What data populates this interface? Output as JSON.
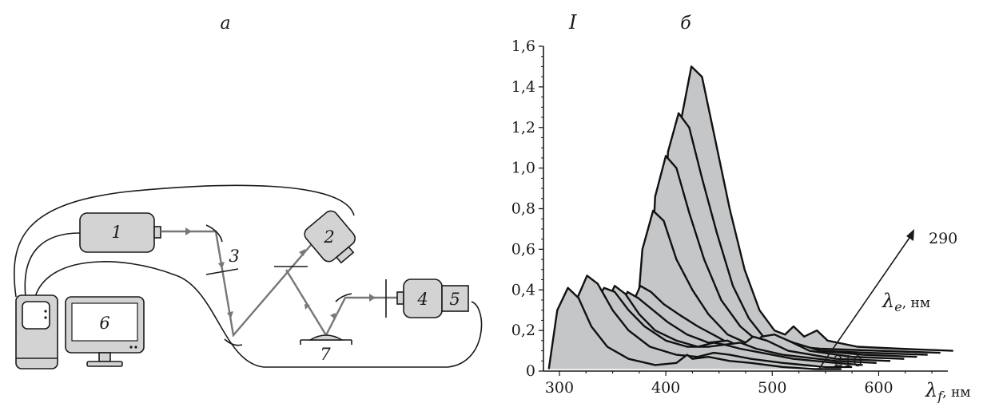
{
  "panel_a": {
    "label": "a",
    "devices": [
      "1",
      "2",
      "3",
      "4",
      "5",
      "6",
      "7"
    ]
  },
  "panel_b": {
    "label": "б"
  },
  "chart_data": {
    "type": "area",
    "ylabel": "I",
    "xlabel": "λ",
    "xlabel_sub": "f",
    "xlabel_unit": ", нм",
    "depth_label": "λ",
    "depth_label_sub": "e",
    "depth_label_unit": ", нм",
    "depth_start_label": "210",
    "depth_end_label": "290",
    "xlim": [
      285,
      665
    ],
    "ylim": [
      0,
      1.6
    ],
    "x_ticks": [
      300,
      400,
      500,
      600
    ],
    "x_tick_labels": [
      "300",
      "400",
      "500",
      "600"
    ],
    "y_ticks": [
      0,
      0.2,
      0.4,
      0.6,
      0.8,
      1.0,
      1.2,
      1.4,
      1.6
    ],
    "y_tick_labels": [
      "0",
      "0,2",
      "0,4",
      "0,6",
      "0,8",
      "1,0",
      "1,2",
      "1,4",
      "1,6"
    ],
    "series": [
      {
        "points": [
          [
            290,
            0.01
          ],
          [
            298,
            0.3
          ],
          [
            308,
            0.41
          ],
          [
            318,
            0.36
          ],
          [
            330,
            0.22
          ],
          [
            345,
            0.12
          ],
          [
            365,
            0.06
          ],
          [
            390,
            0.03
          ],
          [
            410,
            0.04
          ],
          [
            420,
            0.08
          ],
          [
            425,
            0.06
          ],
          [
            440,
            0.07
          ],
          [
            460,
            0.05
          ],
          [
            480,
            0.04
          ],
          [
            510,
            0.02
          ],
          [
            540,
            0.01
          ],
          [
            565,
            0.01
          ]
        ]
      },
      {
        "points": [
          [
            310,
            0.02
          ],
          [
            316,
            0.35
          ],
          [
            326,
            0.47
          ],
          [
            336,
            0.43
          ],
          [
            350,
            0.3
          ],
          [
            365,
            0.2
          ],
          [
            385,
            0.12
          ],
          [
            410,
            0.08
          ],
          [
            430,
            0.07
          ],
          [
            445,
            0.09
          ],
          [
            460,
            0.08
          ],
          [
            480,
            0.06
          ],
          [
            510,
            0.04
          ],
          [
            550,
            0.02
          ],
          [
            575,
            0.02
          ]
        ]
      },
      {
        "points": [
          [
            322,
            0.03
          ],
          [
            330,
            0.3
          ],
          [
            342,
            0.41
          ],
          [
            352,
            0.39
          ],
          [
            365,
            0.3
          ],
          [
            380,
            0.22
          ],
          [
            400,
            0.15
          ],
          [
            420,
            0.12
          ],
          [
            440,
            0.12
          ],
          [
            455,
            0.13
          ],
          [
            470,
            0.11
          ],
          [
            490,
            0.09
          ],
          [
            520,
            0.06
          ],
          [
            560,
            0.04
          ],
          [
            585,
            0.03
          ]
        ]
      },
      {
        "points": [
          [
            334,
            0.04
          ],
          [
            342,
            0.31
          ],
          [
            352,
            0.42
          ],
          [
            362,
            0.38
          ],
          [
            375,
            0.28
          ],
          [
            390,
            0.2
          ],
          [
            410,
            0.15
          ],
          [
            430,
            0.12
          ],
          [
            445,
            0.14
          ],
          [
            455,
            0.13
          ],
          [
            470,
            0.14
          ],
          [
            485,
            0.11
          ],
          [
            510,
            0.08
          ],
          [
            560,
            0.05
          ],
          [
            598,
            0.04
          ]
        ]
      },
      {
        "points": [
          [
            346,
            0.05
          ],
          [
            354,
            0.28
          ],
          [
            364,
            0.39
          ],
          [
            374,
            0.36
          ],
          [
            388,
            0.3
          ],
          [
            402,
            0.24
          ],
          [
            420,
            0.18
          ],
          [
            440,
            0.14
          ],
          [
            458,
            0.15
          ],
          [
            470,
            0.12
          ],
          [
            482,
            0.17
          ],
          [
            495,
            0.15
          ],
          [
            515,
            0.1
          ],
          [
            560,
            0.06
          ],
          [
            611,
            0.05
          ]
        ]
      },
      {
        "points": [
          [
            358,
            0.06
          ],
          [
            366,
            0.3
          ],
          [
            376,
            0.42
          ],
          [
            386,
            0.39
          ],
          [
            398,
            0.33
          ],
          [
            412,
            0.28
          ],
          [
            430,
            0.22
          ],
          [
            448,
            0.17
          ],
          [
            465,
            0.12
          ],
          [
            478,
            0.1
          ],
          [
            490,
            0.17
          ],
          [
            502,
            0.18
          ],
          [
            515,
            0.15
          ],
          [
            535,
            0.1
          ],
          [
            575,
            0.07
          ],
          [
            624,
            0.06
          ]
        ]
      },
      {
        "points": [
          [
            370,
            0.07
          ],
          [
            378,
            0.6
          ],
          [
            388,
            0.79
          ],
          [
            398,
            0.74
          ],
          [
            410,
            0.55
          ],
          [
            425,
            0.4
          ],
          [
            440,
            0.28
          ],
          [
            458,
            0.18
          ],
          [
            475,
            0.14
          ],
          [
            490,
            0.16
          ],
          [
            505,
            0.17
          ],
          [
            520,
            0.14
          ],
          [
            545,
            0.1
          ],
          [
            585,
            0.08
          ],
          [
            636,
            0.07
          ]
        ]
      },
      {
        "points": [
          [
            382,
            0.08
          ],
          [
            390,
            0.86
          ],
          [
            400,
            1.06
          ],
          [
            410,
            1.0
          ],
          [
            422,
            0.78
          ],
          [
            436,
            0.55
          ],
          [
            452,
            0.35
          ],
          [
            470,
            0.22
          ],
          [
            488,
            0.14
          ],
          [
            500,
            0.11
          ],
          [
            512,
            0.13
          ],
          [
            525,
            0.12
          ],
          [
            545,
            0.1
          ],
          [
            590,
            0.09
          ],
          [
            646,
            0.08
          ]
        ]
      },
      {
        "points": [
          [
            394,
            0.09
          ],
          [
            402,
            1.08
          ],
          [
            412,
            1.27
          ],
          [
            422,
            1.2
          ],
          [
            434,
            0.95
          ],
          [
            448,
            0.68
          ],
          [
            463,
            0.42
          ],
          [
            478,
            0.26
          ],
          [
            493,
            0.16
          ],
          [
            505,
            0.12
          ],
          [
            515,
            0.14
          ],
          [
            525,
            0.12
          ],
          [
            545,
            0.11
          ],
          [
            600,
            0.1
          ],
          [
            658,
            0.09
          ]
        ]
      },
      {
        "points": [
          [
            406,
            0.1
          ],
          [
            413,
            1.2
          ],
          [
            424,
            1.5
          ],
          [
            434,
            1.45
          ],
          [
            446,
            1.15
          ],
          [
            460,
            0.8
          ],
          [
            474,
            0.5
          ],
          [
            488,
            0.3
          ],
          [
            502,
            0.2
          ],
          [
            512,
            0.18
          ],
          [
            520,
            0.22
          ],
          [
            530,
            0.17
          ],
          [
            542,
            0.2
          ],
          [
            552,
            0.15
          ],
          [
            580,
            0.12
          ],
          [
            620,
            0.11
          ],
          [
            670,
            0.1
          ]
        ]
      }
    ]
  }
}
